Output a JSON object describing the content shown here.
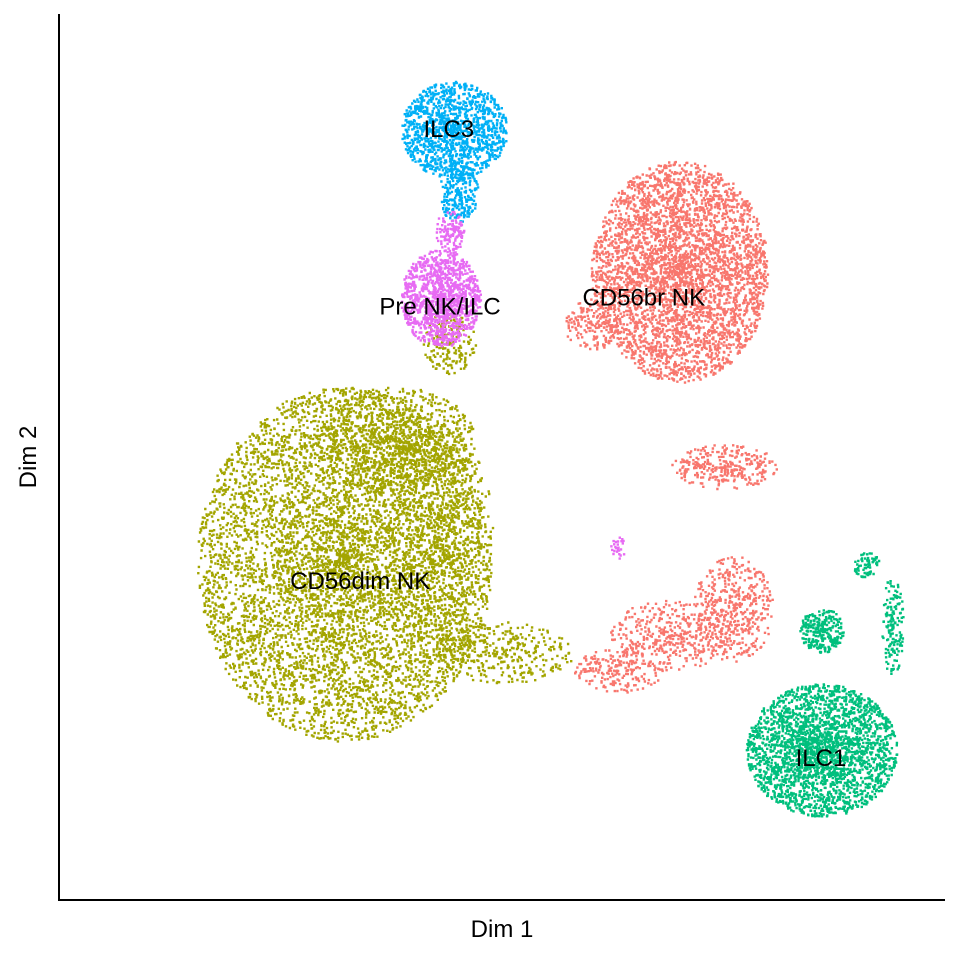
{
  "chart_data": {
    "type": "scatter",
    "title": "",
    "xlabel": "Dim 1",
    "ylabel": "Dim 2",
    "xlim": [
      0,
      100
    ],
    "ylim": [
      0,
      100
    ],
    "grid": false,
    "legend": "none",
    "series": [
      {
        "name": "CD56dim NK",
        "color": "#A3A500",
        "label_at": [
          34,
          36
        ],
        "blobs": [
          {
            "cx": 32,
            "cy": 38,
            "rx": 16.5,
            "ry": 20,
            "n": 6500
          },
          {
            "cx": 38,
            "cy": 52,
            "rx": 9,
            "ry": 6,
            "n": 900
          },
          {
            "cx": 43,
            "cy": 40,
            "rx": 6,
            "ry": 14,
            "n": 800
          },
          {
            "cx": 50,
            "cy": 28,
            "rx": 8,
            "ry": 3.5,
            "n": 350
          },
          {
            "cx": 44,
            "cy": 63,
            "rx": 3,
            "ry": 3.5,
            "n": 180
          }
        ]
      },
      {
        "name": "CD56br NK",
        "color": "#F8766D",
        "label_at": [
          66,
          68
        ],
        "blobs": [
          {
            "cx": 70,
            "cy": 71,
            "rx": 10,
            "ry": 12.5,
            "n": 4000
          },
          {
            "cx": 75,
            "cy": 49,
            "rx": 6,
            "ry": 2.5,
            "n": 300
          },
          {
            "cx": 76,
            "cy": 33,
            "rx": 4.5,
            "ry": 6,
            "n": 450
          },
          {
            "cx": 69,
            "cy": 30,
            "rx": 7,
            "ry": 4,
            "n": 400
          },
          {
            "cx": 63,
            "cy": 26,
            "rx": 5,
            "ry": 2.5,
            "n": 200
          },
          {
            "cx": 60,
            "cy": 65,
            "rx": 3,
            "ry": 3,
            "n": 150
          }
        ]
      },
      {
        "name": "ILC3",
        "color": "#00B0F6",
        "label_at": [
          44,
          87
        ],
        "blobs": [
          {
            "cx": 44.5,
            "cy": 87,
            "rx": 6,
            "ry": 5.5,
            "n": 1300
          },
          {
            "cx": 45,
            "cy": 80,
            "rx": 2.2,
            "ry": 3.5,
            "n": 250
          }
        ]
      },
      {
        "name": "Pre NK/ILC",
        "color": "#E76BF3",
        "label_at": [
          43,
          67
        ],
        "blobs": [
          {
            "cx": 43,
            "cy": 68,
            "rx": 4.5,
            "ry": 5.5,
            "n": 1200
          },
          {
            "cx": 44,
            "cy": 75.5,
            "rx": 1.6,
            "ry": 2.5,
            "n": 120
          },
          {
            "cx": 63,
            "cy": 40,
            "rx": 0.8,
            "ry": 1.5,
            "n": 25
          }
        ]
      },
      {
        "name": "ILC1",
        "color": "#00BF7D",
        "label_at": [
          86,
          16
        ],
        "blobs": [
          {
            "cx": 86,
            "cy": 17,
            "rx": 8.5,
            "ry": 7.5,
            "n": 2600
          },
          {
            "cx": 86,
            "cy": 30.5,
            "rx": 2.5,
            "ry": 2.5,
            "n": 280
          },
          {
            "cx": 94,
            "cy": 31,
            "rx": 1.2,
            "ry": 6,
            "n": 150
          },
          {
            "cx": 91,
            "cy": 38,
            "rx": 1.5,
            "ry": 1.5,
            "n": 70
          }
        ]
      }
    ]
  }
}
